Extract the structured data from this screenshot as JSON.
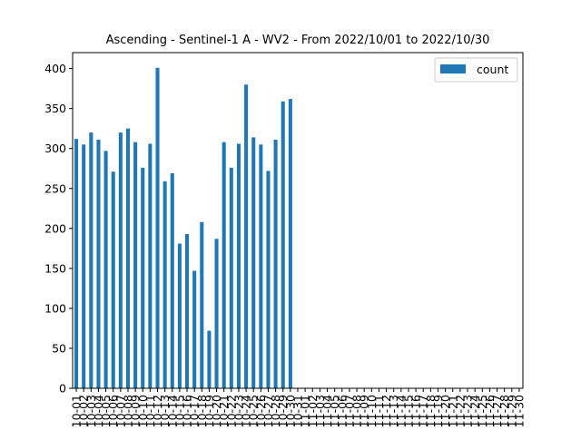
{
  "chart_data": {
    "type": "bar",
    "title": "Ascending - Sentinel-1 A - WV2 - From 2022/10/01 to 2022/10/30",
    "xlabel": "",
    "ylabel": "",
    "ylim": [
      0,
      420
    ],
    "yticks": [
      0,
      50,
      100,
      150,
      200,
      250,
      300,
      350,
      400
    ],
    "grid": false,
    "legend_position": "top-right",
    "categories": [
      "10-01",
      "10-02",
      "10-03",
      "10-04",
      "10-05",
      "10-06",
      "10-07",
      "10-08",
      "10-09",
      "10-10",
      "10-11",
      "10-12",
      "10-13",
      "10-14",
      "10-15",
      "10-16",
      "10-17",
      "10-18",
      "10-19",
      "10-20",
      "10-21",
      "10-22",
      "10-23",
      "10-24",
      "10-25",
      "10-26",
      "10-27",
      "10-28",
      "10-29",
      "10-30",
      "10-31",
      "11-01",
      "11-02",
      "11-03",
      "11-04",
      "11-05",
      "11-06",
      "11-07",
      "11-08",
      "11-09",
      "11-10",
      "11-11",
      "11-12",
      "11-13",
      "11-14",
      "11-15",
      "11-16",
      "11-17",
      "11-18",
      "11-19",
      "11-20",
      "11-21",
      "11-22",
      "11-23",
      "11-24",
      "11-25",
      "11-26",
      "11-27",
      "11-28",
      "11-29",
      "11-30"
    ],
    "series": [
      {
        "name": "count",
        "color": "#1f77b4",
        "values": [
          312,
          305,
          320,
          311,
          297,
          271,
          320,
          325,
          308,
          276,
          306,
          401,
          259,
          269,
          181,
          193,
          147,
          208,
          72,
          187,
          308,
          276,
          306,
          380,
          314,
          305,
          272,
          311,
          359,
          362,
          0,
          0,
          0,
          0,
          0,
          0,
          0,
          0,
          0,
          0,
          0,
          0,
          0,
          0,
          0,
          0,
          0,
          0,
          0,
          0,
          0,
          0,
          0,
          0,
          0,
          0,
          0,
          0,
          0,
          0,
          0
        ]
      }
    ]
  }
}
